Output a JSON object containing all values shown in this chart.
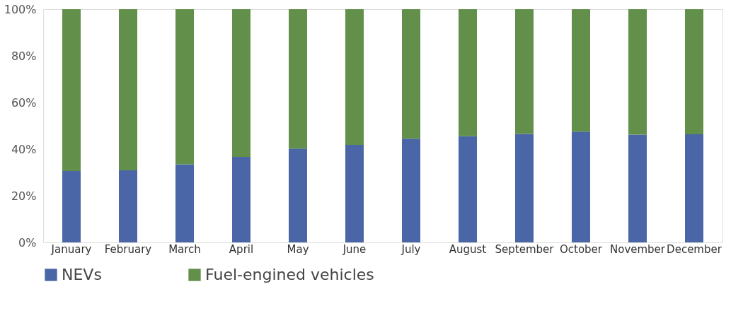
{
  "chart_data": {
    "type": "bar",
    "stacked": true,
    "categories": [
      "January",
      "February",
      "March",
      "April",
      "May",
      "June",
      "July",
      "August",
      "September",
      "October",
      "November",
      "December"
    ],
    "series": [
      {
        "name": "NEVs",
        "color": "#4a66a6",
        "values": [
          30.6,
          30.9,
          33.5,
          36.7,
          40.2,
          41.8,
          44.5,
          45.5,
          46.5,
          47.5,
          46.2,
          46.4
        ]
      },
      {
        "name": "Fuel-engined vehicles",
        "color": "#62904a",
        "values": [
          69.4,
          69.1,
          66.5,
          63.3,
          59.8,
          58.2,
          55.5,
          54.5,
          53.5,
          52.5,
          53.8,
          53.6
        ]
      }
    ],
    "ylim": [
      0,
      100
    ],
    "yticks": [
      {
        "value": 0,
        "label": "0%"
      },
      {
        "value": 20,
        "label": "20%"
      },
      {
        "value": 40,
        "label": "40%"
      },
      {
        "value": 60,
        "label": "60%"
      },
      {
        "value": 80,
        "label": "80%"
      },
      {
        "value": 100,
        "label": "100%"
      }
    ],
    "grid": false,
    "legend": "bottom"
  }
}
